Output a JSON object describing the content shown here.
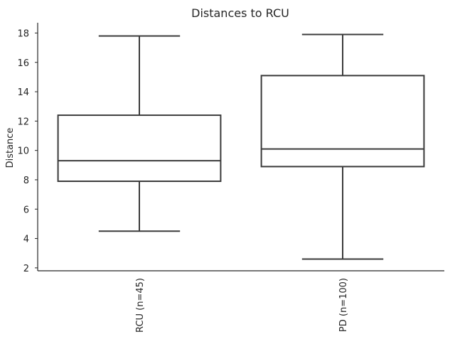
{
  "chart_data": {
    "type": "box",
    "title": "Distances to RCU",
    "xlabel": "",
    "ylabel": "Distance",
    "ylim": [
      1.8,
      18.7
    ],
    "yticks": [
      2,
      4,
      6,
      8,
      10,
      12,
      14,
      16,
      18
    ],
    "grid": false,
    "categories": [
      "RCU (n=45)",
      "PD (n=100)"
    ],
    "boxes": [
      {
        "category": "RCU (n=45)",
        "whisker_low": 4.5,
        "q1": 7.9,
        "median": 9.3,
        "q3": 12.4,
        "whisker_high": 17.8
      },
      {
        "category": "PD (n=100)",
        "whisker_low": 2.6,
        "q1": 8.9,
        "median": 10.1,
        "q3": 15.1,
        "whisker_high": 17.9
      }
    ],
    "colors": {
      "line": "#3b3b3b",
      "box_fill": "#ffffff",
      "axis": "#262626"
    }
  }
}
